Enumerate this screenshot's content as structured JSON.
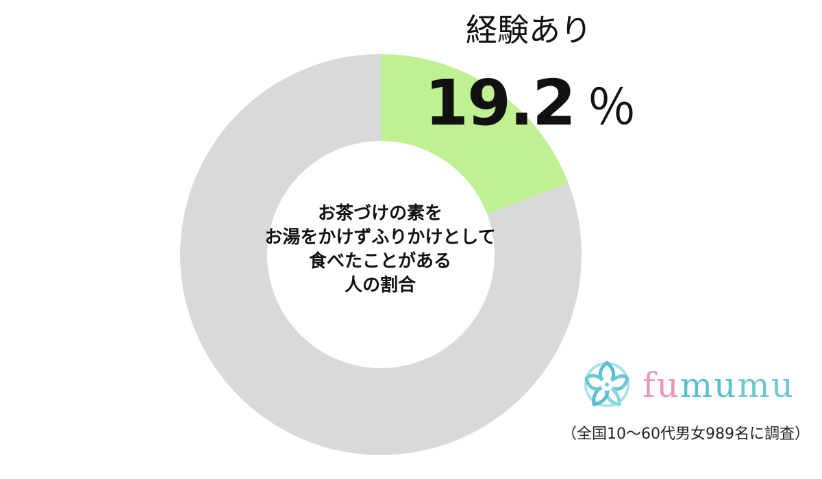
{
  "chart_data": {
    "type": "pie",
    "donut": true,
    "title": "お茶づけの素をお湯をかけずふりかけとして食べたことがある人の割合",
    "title_lines": [
      "お茶づけの素を",
      "お湯をかけずふりかけとして",
      "食べたことがある",
      "人の割合"
    ],
    "slices": [
      {
        "name": "経験あり",
        "value": 19.2,
        "color": "#bff092",
        "labeled": true
      },
      {
        "name": "",
        "value": 80.8,
        "color": "#d9d9d9",
        "labeled": false
      }
    ],
    "value_label": {
      "number": "19.2",
      "unit": "％"
    },
    "legend": "none"
  },
  "brand": {
    "name": "fumumu",
    "characters": [
      "f",
      "u",
      "m",
      "u",
      "m",
      "u"
    ],
    "colors": [
      "#ec95b6",
      "#59bfd0",
      "#6dc8d1"
    ],
    "icon": "flower-logo-icon"
  },
  "note": "（全国10～60代男女989名に調査）"
}
